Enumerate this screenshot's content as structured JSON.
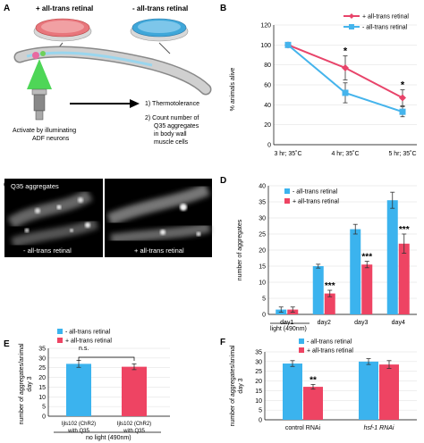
{
  "panels": {
    "a": {
      "label": "A",
      "dish_plus": "+ all-trans retinal",
      "dish_minus": "- all-trans retinal",
      "activate_line1": "Activate by illuminating",
      "activate_line2": "ADF neurons",
      "step1": "1) Thermotolerance",
      "step2_line1": "2) Count number of",
      "step2_line2": "Q35 aggregates",
      "step2_line3": "in body wall",
      "step2_line4": "muscle cells"
    },
    "b": {
      "label": "B"
    },
    "c": {
      "label": "C",
      "title": "Q35 aggregates",
      "left_caption": "- all-trans retinal",
      "right_caption": "+ all-trans retinal"
    },
    "d": {
      "label": "D",
      "light_note": "light (490nm)"
    },
    "e": {
      "label": "E",
      "no_light_note": "no light (490nm)",
      "ns": "n.s."
    },
    "f": {
      "label": "F"
    }
  },
  "colors": {
    "blue": "#3bb3ee",
    "red": "#ee4463",
    "line_red": "#e8446a",
    "line_blue": "#45b4ec"
  },
  "chart_data": [
    {
      "panel": "B",
      "type": "line",
      "categories": [
        "3 hr; 35˚C",
        "4 hr; 35˚C",
        "5 hr; 35˚C"
      ],
      "ylabel": "% animals alive",
      "ylim": [
        0,
        120
      ],
      "yticks": [
        0,
        20,
        40,
        60,
        80,
        100,
        120
      ],
      "legend_position": "top-right",
      "series": [
        {
          "name": "+ all-trans retinal",
          "values": [
            100,
            77,
            47
          ],
          "err": [
            0,
            12,
            8
          ],
          "color": "#e8446a"
        },
        {
          "name": "- all-trans retinal",
          "values": [
            100,
            52,
            33
          ],
          "err": [
            0,
            10,
            5
          ],
          "color": "#45b4ec"
        }
      ],
      "annotations": [
        "*",
        "*"
      ]
    },
    {
      "panel": "D",
      "type": "bar",
      "categories": [
        "day1",
        "day2",
        "day3",
        "day4"
      ],
      "ylabel": "number of aggregates",
      "ylim": [
        0,
        40
      ],
      "yticks": [
        0,
        5,
        10,
        15,
        20,
        25,
        30,
        35,
        40
      ],
      "legend_position": "top-left",
      "series": [
        {
          "name": "- all-trans retinal",
          "values": [
            1.5,
            15,
            26.5,
            35.5
          ],
          "err": [
            0.8,
            0.6,
            1.5,
            2.5
          ],
          "color": "#3bb3ee"
        },
        {
          "name": "+ all-trans retinal",
          "values": [
            1.5,
            6.5,
            15.5,
            22
          ],
          "err": [
            0.8,
            1,
            1,
            3
          ],
          "color": "#ee4463"
        }
      ],
      "annotations": [
        "***",
        "***",
        "***"
      ]
    },
    {
      "panel": "E",
      "type": "bar",
      "categories": [
        "Ijls102 (ChR2) with Q35",
        "Ijls102 (ChR2) with Q35"
      ],
      "ylabel_line1": "number of aggregates/animal",
      "ylabel_line2": "day 3",
      "ylim": [
        0,
        35
      ],
      "yticks": [
        0,
        5,
        10,
        15,
        20,
        25,
        30,
        35
      ],
      "legend_position": "top",
      "series_names": [
        "- all-trans retinal",
        "+ all-trans retinal"
      ],
      "values": [
        27,
        25.5
      ],
      "err": [
        1.8,
        1.5
      ],
      "bar_colors": [
        "#3bb3ee",
        "#ee4463"
      ]
    },
    {
      "panel": "F",
      "type": "bar",
      "categories": [
        "control RNAi",
        "hsf-1 RNAi"
      ],
      "ylabel_line1": "number of aggregates/animal",
      "ylabel_line2": "day 3",
      "ylim": [
        0,
        35
      ],
      "yticks": [
        0,
        5,
        10,
        15,
        20,
        25,
        30,
        35
      ],
      "legend_position": "top",
      "series": [
        {
          "name": "- all-trans retinal",
          "values": [
            29,
            30
          ],
          "err": [
            1.5,
            1.5
          ],
          "color": "#3bb3ee"
        },
        {
          "name": "+ all-trans retinal",
          "values": [
            17,
            28.5
          ],
          "err": [
            1.2,
            2
          ],
          "color": "#ee4463"
        }
      ],
      "annotations": [
        "**"
      ]
    }
  ]
}
